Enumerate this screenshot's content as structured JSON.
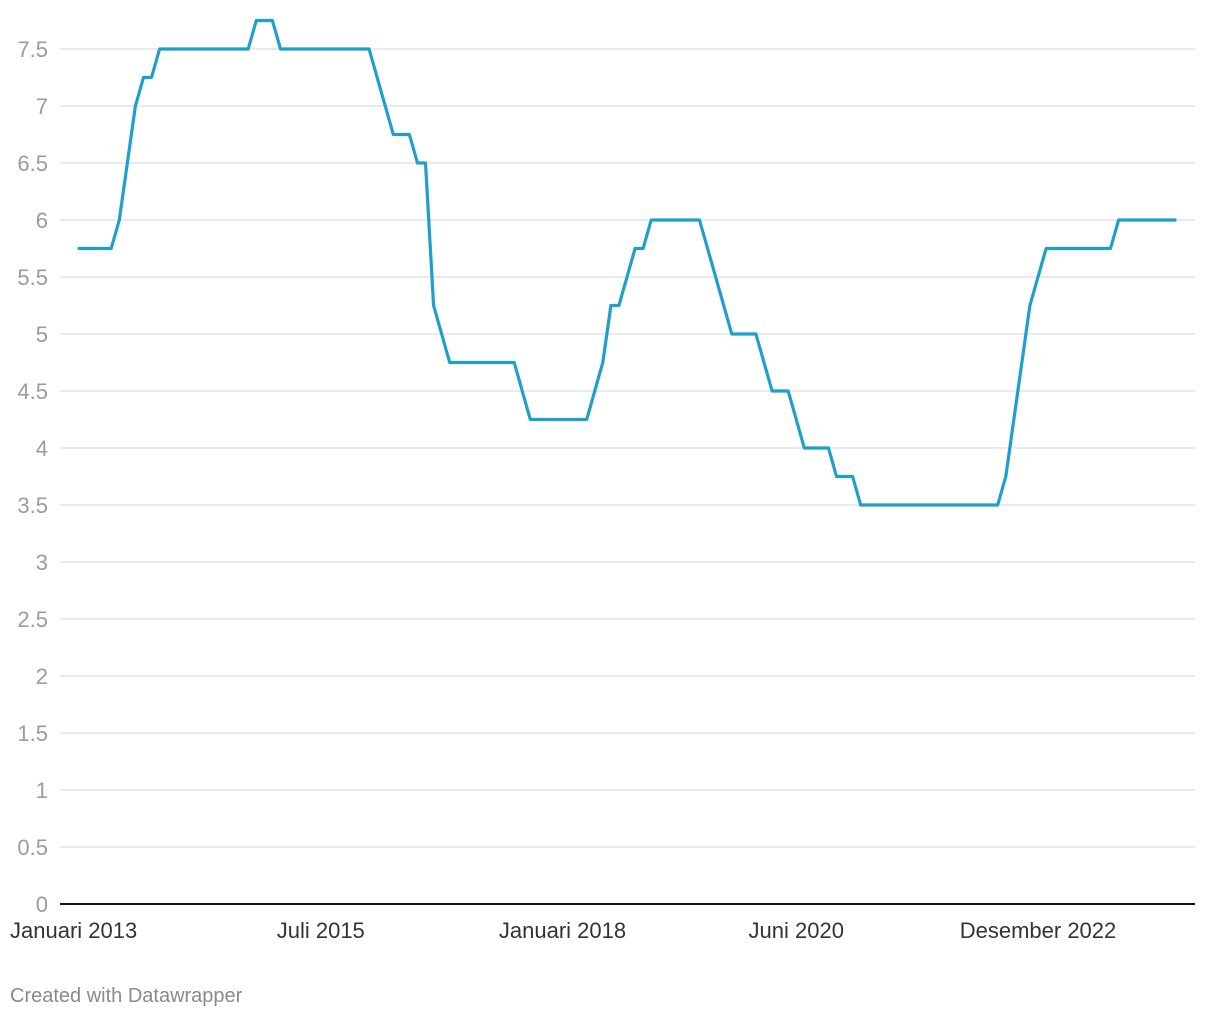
{
  "credit": "Created with Datawrapper",
  "colors": {
    "line": "#1f9fc9",
    "grid": "#e3e3e3",
    "baseline": "#111111",
    "ytick": "#9b9b9b",
    "xtick": "#333333"
  },
  "chart_data": {
    "type": "line",
    "title": "",
    "xlabel": "",
    "ylabel": "",
    "ylim": [
      0,
      7.5
    ],
    "grid": true,
    "y_ticks": [
      "0",
      "0.5",
      "1",
      "1.5",
      "2",
      "2.5",
      "3",
      "3.5",
      "4",
      "4.5",
      "5",
      "5.5",
      "6",
      "6.5",
      "7",
      "7.5"
    ],
    "x_ticks": [
      {
        "label": "Januari 2013",
        "date": "2013-01"
      },
      {
        "label": "Juli 2015",
        "date": "2015-07"
      },
      {
        "label": "Januari 2018",
        "date": "2018-01"
      },
      {
        "label": "Juni 2020",
        "date": "2020-06"
      },
      {
        "label": "Desember 2022",
        "date": "2022-12"
      }
    ],
    "series": [
      {
        "points": [
          [
            "2013-01",
            5.75
          ],
          [
            "2013-05",
            5.75
          ],
          [
            "2013-06",
            6.0
          ],
          [
            "2013-08",
            7.0
          ],
          [
            "2013-09",
            7.25
          ],
          [
            "2013-10",
            7.25
          ],
          [
            "2013-11",
            7.5
          ],
          [
            "2014-10",
            7.5
          ],
          [
            "2014-11",
            7.75
          ],
          [
            "2015-01",
            7.75
          ],
          [
            "2015-02",
            7.5
          ],
          [
            "2016-01",
            7.5
          ],
          [
            "2016-04",
            6.75
          ],
          [
            "2016-06",
            6.75
          ],
          [
            "2016-07",
            6.5
          ],
          [
            "2016-08",
            6.5
          ],
          [
            "2016-09",
            5.25
          ],
          [
            "2016-11",
            4.75
          ],
          [
            "2017-07",
            4.75
          ],
          [
            "2017-09",
            4.25
          ],
          [
            "2018-04",
            4.25
          ],
          [
            "2018-06",
            4.75
          ],
          [
            "2018-07",
            5.25
          ],
          [
            "2018-08",
            5.25
          ],
          [
            "2018-10",
            5.75
          ],
          [
            "2018-11",
            5.75
          ],
          [
            "2018-12",
            6.0
          ],
          [
            "2019-06",
            6.0
          ],
          [
            "2019-10",
            5.0
          ],
          [
            "2020-01",
            5.0
          ],
          [
            "2020-03",
            4.5
          ],
          [
            "2020-05",
            4.5
          ],
          [
            "2020-07",
            4.0
          ],
          [
            "2020-10",
            4.0
          ],
          [
            "2020-11",
            3.75
          ],
          [
            "2021-01",
            3.75
          ],
          [
            "2021-02",
            3.5
          ],
          [
            "2022-07",
            3.5
          ],
          [
            "2022-08",
            3.75
          ],
          [
            "2022-11",
            5.25
          ],
          [
            "2023-01",
            5.75
          ],
          [
            "2023-09",
            5.75
          ],
          [
            "2023-10",
            6.0
          ],
          [
            "2024-05",
            6.0
          ]
        ]
      }
    ]
  }
}
